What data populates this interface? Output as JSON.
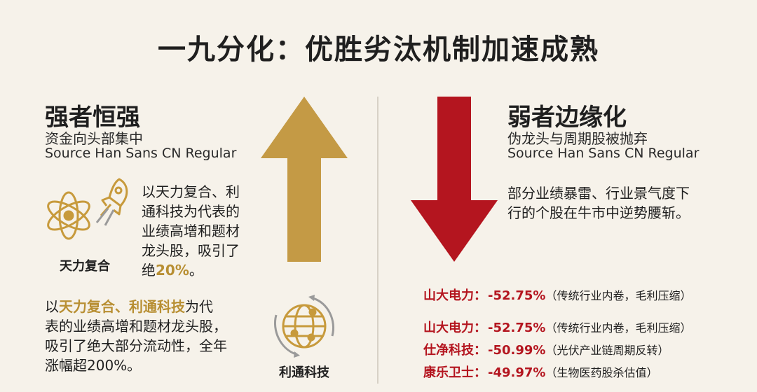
{
  "title": "一九分化：优胜劣汰机制加速成熟",
  "left": {
    "heading": "强者恒强",
    "subtitle": "资金向头部集中",
    "font_note": "Source Han Sans CN Regular",
    "para1": {
      "lines": [
        "以天力复合、利",
        "通科技为代表的",
        "业绩高增和题材",
        "龙头股，吸引了"
      ],
      "last_prefix": "绝",
      "highlight": "20%",
      "last_suffix": "。"
    },
    "icon1_label": "天力复合",
    "para2": {
      "prefix": "以",
      "highlight": "天力复合、利通科技",
      "line1_suffix": "为代",
      "lines": [
        "表的业绩高增和题材龙头股，",
        "吸引了绝大部分流动性，全年",
        "涨幅超200%。"
      ]
    },
    "icon2_label": "利通科技"
  },
  "right": {
    "heading": "弱者边缘化",
    "subtitle": "伪龙头与周期股被抛弃",
    "font_note": "Source Han Sans CN Regular",
    "para_lines": [
      "部分业绩暴雷、行业景气度下",
      "行的个股在牛市中逆势腰斩。"
    ],
    "stocks": [
      {
        "name": "山大电力：",
        "change": "-52.75%",
        "note": "（传统行业内卷，毛利压缩）"
      },
      {
        "name": "山大电力：",
        "change": "-52.75%",
        "note": "（传统行业内卷，毛利压缩）"
      },
      {
        "name": "仕净科技：",
        "change": "-50.99%",
        "note": "（光伏产业链周期反转）"
      },
      {
        "name": "康乐卫士：",
        "change": "-49.97%",
        "note": "（生物医药股杀估值）"
      }
    ]
  },
  "colors": {
    "background": "#f6f2ea",
    "gold": "#b88f33",
    "red": "#b4151f",
    "text": "#1f1f1f"
  },
  "icons": [
    "atom-icon",
    "rocket-icon",
    "globe-network-icon",
    "up-arrow",
    "down-arrow"
  ]
}
